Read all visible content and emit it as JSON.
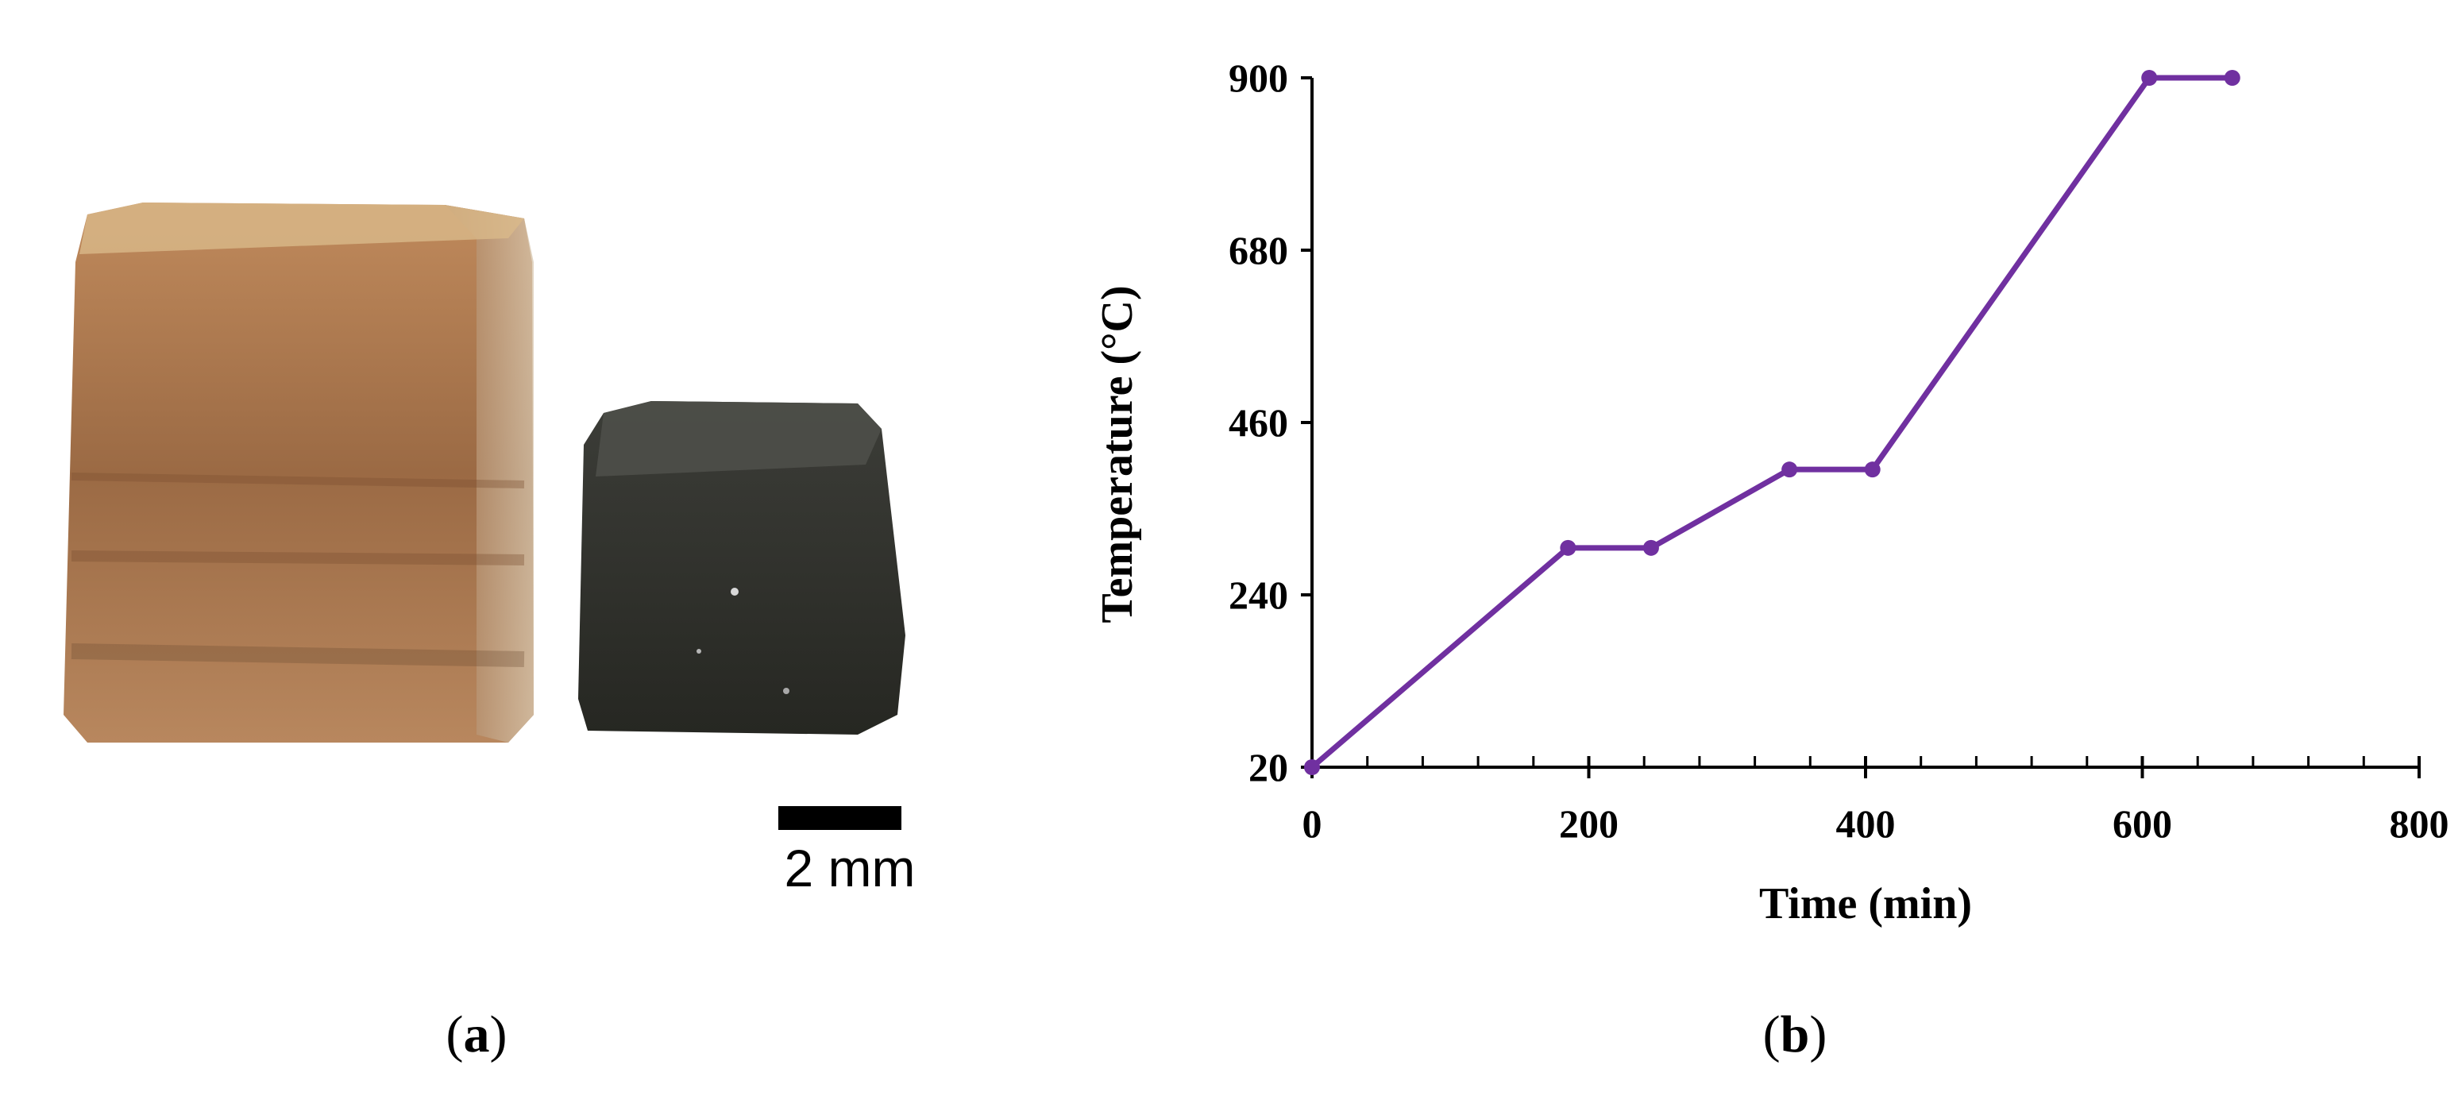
{
  "panel_a": {
    "label": "a",
    "scale_bar_label": "2 mm",
    "colors": {
      "green_body": "#9b6a44",
      "sintered_body": "#2f302c",
      "scale_bar": "#000000"
    }
  },
  "panel_b": {
    "label": "b"
  },
  "chart_data": {
    "type": "line",
    "xlabel": "Time (min)",
    "ylabel": "Temperature (°C)",
    "xlim": [
      0,
      800
    ],
    "ylim": [
      20,
      900
    ],
    "x_ticks": [
      0,
      200,
      400,
      600,
      800
    ],
    "y_ticks": [
      20,
      240,
      460,
      680,
      900
    ],
    "grid": false,
    "series": [
      {
        "color": "#7030a0",
        "points": [
          {
            "x": 0,
            "y": 20
          },
          {
            "x": 185,
            "y": 300
          },
          {
            "x": 245,
            "y": 300
          },
          {
            "x": 345,
            "y": 400
          },
          {
            "x": 405,
            "y": 400
          },
          {
            "x": 605,
            "y": 900
          },
          {
            "x": 665,
            "y": 900
          }
        ]
      }
    ]
  }
}
